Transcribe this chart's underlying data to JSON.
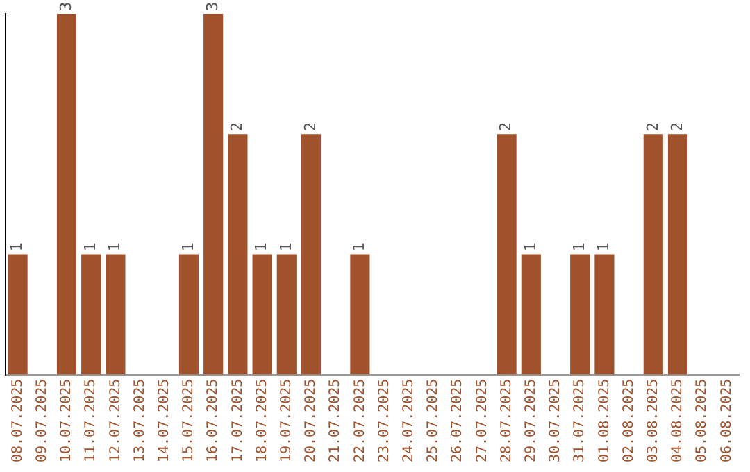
{
  "chart_data": {
    "type": "bar",
    "categories": [
      "08.07.2025",
      "09.07.2025",
      "10.07.2025",
      "11.07.2025",
      "12.07.2025",
      "13.07.2025",
      "14.07.2025",
      "15.07.2025",
      "16.07.2025",
      "17.07.2025",
      "18.07.2025",
      "19.07.2025",
      "20.07.2025",
      "21.07.2025",
      "22.07.2025",
      "23.07.2025",
      "24.07.2025",
      "25.07.2025",
      "26.07.2025",
      "27.07.2025",
      "28.07.2025",
      "29.07.2025",
      "30.07.2025",
      "31.07.2025",
      "01.08.2025",
      "02.08.2025",
      "03.08.2025",
      "04.08.2025",
      "05.08.2025",
      "06.08.2025"
    ],
    "values": [
      1,
      0,
      3,
      1,
      1,
      0,
      0,
      1,
      3,
      2,
      1,
      1,
      2,
      0,
      1,
      0,
      0,
      0,
      0,
      0,
      2,
      1,
      0,
      1,
      1,
      0,
      2,
      2,
      0,
      0
    ],
    "value_labels": [
      "1",
      null,
      "3",
      "1",
      "1",
      null,
      null,
      "1",
      "3",
      "2",
      "1",
      "1",
      "2",
      null,
      "1",
      null,
      null,
      null,
      null,
      null,
      "2",
      "1",
      null,
      "1",
      "1",
      null,
      "2",
      "2",
      null,
      null
    ],
    "color": "#a0522d",
    "grid": false,
    "legend": false,
    "tick_labels": "x"
  }
}
